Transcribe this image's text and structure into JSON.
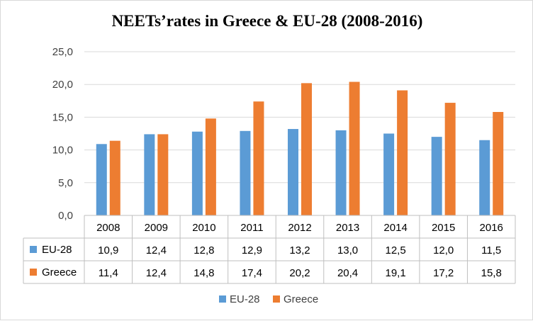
{
  "chart_data": {
    "type": "bar",
    "title": "NEETs’rates in Greece & EU-28 (2008-2016)",
    "categories": [
      "2008",
      "2009",
      "2010",
      "2011",
      "2012",
      "2013",
      "2014",
      "2015",
      "2016"
    ],
    "series": [
      {
        "name": "EU-28",
        "color": "#5b9bd5",
        "values": [
          10.9,
          12.4,
          12.8,
          12.9,
          13.2,
          13.0,
          12.5,
          12.0,
          11.5
        ],
        "labels": [
          "10,9",
          "12,4",
          "12,8",
          "12,9",
          "13,2",
          "13,0",
          "12,5",
          "12,0",
          "11,5"
        ]
      },
      {
        "name": "Greece",
        "color": "#ed7d31",
        "values": [
          11.4,
          12.4,
          14.8,
          17.4,
          20.2,
          20.4,
          19.1,
          17.2,
          15.8
        ],
        "labels": [
          "11,4",
          "12,4",
          "14,8",
          "17,4",
          "20,2",
          "20,4",
          "19,1",
          "17,2",
          "15,8"
        ]
      }
    ],
    "yaxis": {
      "ticks": [
        0,
        5,
        10,
        15,
        20,
        25
      ],
      "tick_labels": [
        "0,0",
        "5,0",
        "10,0",
        "15,0",
        "20,0",
        "25,0"
      ],
      "ylim": [
        0,
        25
      ]
    },
    "grid": true,
    "data_table": true,
    "legend": "bottom"
  }
}
